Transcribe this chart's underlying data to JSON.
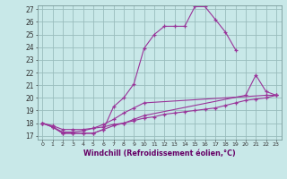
{
  "line_color": "#993399",
  "bg_color": "#c8e8e8",
  "grid_color": "#99bcbc",
  "xlabel": "Windchill (Refroidissement éolien,°C)",
  "ylim": [
    16.7,
    27.3
  ],
  "xlim": [
    -0.5,
    23.5
  ],
  "yticks": [
    17,
    18,
    19,
    20,
    21,
    22,
    23,
    24,
    25,
    26,
    27
  ],
  "xticks": [
    0,
    1,
    2,
    3,
    4,
    5,
    6,
    7,
    8,
    9,
    10,
    11,
    12,
    13,
    14,
    15,
    16,
    17,
    18,
    19,
    20,
    21,
    22,
    23
  ],
  "lines": [
    {
      "x": [
        0,
        1,
        2,
        3,
        4,
        5,
        6,
        7,
        8,
        9,
        10,
        11,
        12,
        13,
        14,
        15,
        16,
        17,
        18,
        19
      ],
      "y": [
        18.0,
        17.7,
        17.2,
        17.2,
        17.2,
        17.2,
        17.5,
        19.3,
        20.0,
        21.1,
        23.9,
        25.0,
        25.65,
        25.65,
        25.65,
        27.2,
        27.2,
        26.2,
        25.2,
        23.8
      ]
    },
    {
      "x": [
        0,
        1,
        2,
        3,
        4,
        5,
        6,
        7,
        8,
        9,
        10,
        20,
        21,
        22,
        23
      ],
      "y": [
        18.0,
        17.7,
        17.2,
        17.2,
        17.2,
        17.2,
        17.5,
        17.8,
        18.0,
        18.3,
        18.6,
        20.2,
        21.8,
        20.5,
        20.2
      ]
    },
    {
      "x": [
        0,
        1,
        2,
        3,
        4,
        5,
        6,
        7,
        8,
        9,
        10,
        22,
        23
      ],
      "y": [
        18.0,
        17.7,
        17.3,
        17.3,
        17.4,
        17.6,
        17.9,
        18.3,
        18.8,
        19.2,
        19.6,
        20.2,
        20.2
      ]
    },
    {
      "x": [
        0,
        1,
        2,
        3,
        4,
        5,
        6,
        7,
        8,
        9,
        10,
        11,
        12,
        13,
        14,
        15,
        16,
        17,
        18,
        19,
        20,
        21,
        22,
        23
      ],
      "y": [
        18.0,
        17.8,
        17.5,
        17.5,
        17.5,
        17.6,
        17.7,
        17.9,
        18.0,
        18.2,
        18.4,
        18.5,
        18.7,
        18.8,
        18.9,
        19.0,
        19.1,
        19.2,
        19.4,
        19.6,
        19.8,
        19.9,
        20.0,
        20.2
      ]
    }
  ]
}
